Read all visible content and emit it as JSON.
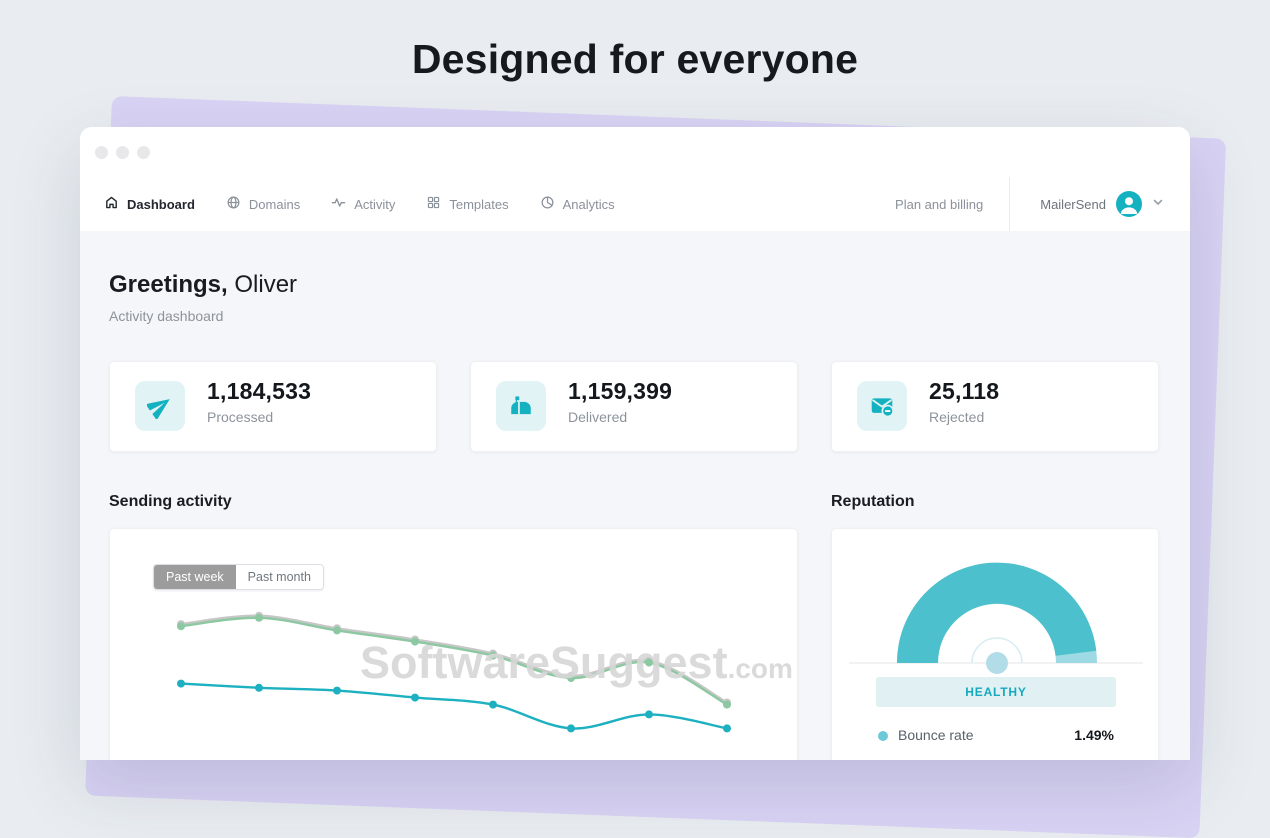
{
  "page": {
    "hero_title": "Designed for everyone"
  },
  "window": {
    "nav": {
      "items": [
        {
          "label": "Dashboard",
          "icon": "home-icon",
          "active": true
        },
        {
          "label": "Domains",
          "icon": "globe-icon",
          "active": false
        },
        {
          "label": "Activity",
          "icon": "activity-pulse-icon",
          "active": false
        },
        {
          "label": "Templates",
          "icon": "templates-grid-icon",
          "active": false
        },
        {
          "label": "Analytics",
          "icon": "analytics-pie-icon",
          "active": false
        }
      ],
      "plan_billing_label": "Plan and billing",
      "account": {
        "name": "MailerSend",
        "avatar_icon": "person-icon",
        "chevron_icon": "chevron-down-icon"
      }
    },
    "greeting": {
      "title_bold": "Greetings,",
      "title_name": " Oliver",
      "subtitle": "Activity dashboard"
    },
    "stats": [
      {
        "value": "1,184,533",
        "label": "Processed",
        "icon": "paper-plane-icon"
      },
      {
        "value": "1,159,399",
        "label": "Delivered",
        "icon": "mailbox-icon"
      },
      {
        "value": "25,118",
        "label": "Rejected",
        "icon": "mail-rejected-icon"
      }
    ],
    "sending_activity": {
      "heading": "Sending activity",
      "tabs": [
        {
          "label": "Past week",
          "active": true
        },
        {
          "label": "Past month",
          "active": false
        }
      ],
      "chart_data": {
        "type": "line",
        "x": [
          1,
          2,
          3,
          4,
          5,
          6,
          7,
          8
        ],
        "x_labels": [],
        "ylim": [
          0,
          100
        ],
        "grid": false,
        "legend": "none",
        "series": [
          {
            "name": "comparison-gray-line",
            "color": "#c7c7c7",
            "values": [
              83.5,
              89.5,
              80.5,
              72.5,
              62.5,
              46.5,
              57.5,
              27.5
            ]
          },
          {
            "name": "upper-green-line",
            "color": "#8cc8a1",
            "values": [
              82,
              88,
              79,
              71,
              61,
              45,
              56,
              26
            ]
          },
          {
            "name": "lower-teal-line",
            "color": "#1cb0c0",
            "values": [
              41,
              38,
              36,
              31,
              26,
              9,
              19,
              9
            ]
          }
        ]
      }
    },
    "reputation": {
      "heading": "Reputation",
      "status_label": "HEALTHY",
      "metric_label": "Bounce rate",
      "metric_value": "1.49%",
      "gauge": {
        "value_color": "#4dc0cd",
        "track_color": "#9edae3",
        "hub_color": "#b2dde8",
        "ring_color": "#d6edf1",
        "baseline_color": "#e9e9e9"
      }
    }
  },
  "watermark": {
    "text": "SoftwareSuggest",
    "suffix": ".com",
    "color": "#d7d7d7"
  },
  "colors": {
    "brand_teal": "#14b2c1",
    "stat_icon_bg": "#e1f3f5",
    "badge_bg": "#e0f0f3",
    "badge_text": "#15a9be",
    "page_bg": "#e9edf1",
    "purple_accent": "#d9d3f4",
    "main_bg": "#f4f6f9",
    "toggle_active_bg": "#9c9c9c"
  }
}
